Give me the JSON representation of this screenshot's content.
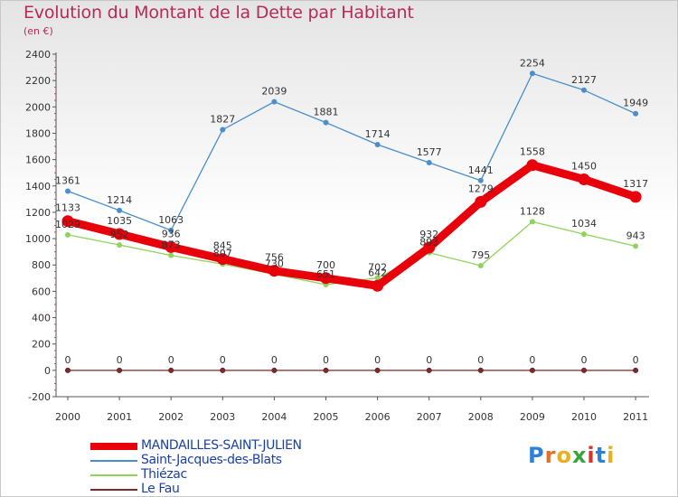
{
  "title": "Evolution du Montant de la Dette par Habitant",
  "subtitle": "(en €)",
  "logo": {
    "letters": [
      "P",
      "r",
      "o",
      "x",
      "i",
      "t",
      "i"
    ],
    "colors": [
      "#2f7fd6",
      "#e2702a",
      "#e8b020",
      "#3aa53a",
      "#d8352a",
      "#2f7fd6",
      "#e8b020"
    ]
  },
  "chart_data": {
    "type": "line",
    "title": "Evolution du Montant de la Dette par Habitant",
    "subtitle": "(en €)",
    "xlabel": "",
    "ylabel": "",
    "x": [
      "2000",
      "2001",
      "2002",
      "2003",
      "2004",
      "2005",
      "2006",
      "2007",
      "2008",
      "2009",
      "2010",
      "2011"
    ],
    "ylim": [
      -200,
      2400
    ],
    "yticks": [
      -200,
      0,
      200,
      400,
      600,
      800,
      1000,
      1200,
      1400,
      1600,
      1800,
      2000,
      2200,
      2400
    ],
    "grid": false,
    "legend": "bottom-left",
    "series": [
      {
        "name": "MANDAILLES-SAINT-JULIEN",
        "color": "#e8000b",
        "values": [
          1133,
          1035,
          936,
          845,
          756,
          700,
          642,
          932,
          1279,
          1558,
          1450,
          1317
        ],
        "labels": [
          "1133",
          "1035",
          "936",
          "845",
          "756",
          "700",
          "642",
          "932",
          "1279",
          "1558",
          "1450",
          "1317"
        ]
      },
      {
        "name": "Saint-Jacques-des-Blats",
        "color": "#4a8fcc",
        "values": [
          1361,
          1214,
          1063,
          1827,
          2039,
          1881,
          1714,
          1577,
          1441,
          2254,
          2127,
          1949
        ],
        "labels": [
          "1361",
          "1214",
          "1063",
          "1827",
          "2039",
          "1881",
          "1714",
          "1577",
          "1441",
          "2254",
          "2127",
          "1949"
        ]
      },
      {
        "name": "Thiézac",
        "color": "#8fd35a",
        "values": [
          1029,
          952,
          873,
          807,
          730,
          651,
          702,
          893,
          795,
          1128,
          1034,
          943
        ],
        "labels": [
          "1029",
          "952",
          "873",
          "807",
          "730",
          "651",
          "702",
          "893",
          "795",
          "1128",
          "1034",
          "943"
        ]
      },
      {
        "name": "Le Fau",
        "color": "#7a2a2a",
        "values": [
          0,
          0,
          0,
          0,
          0,
          0,
          0,
          0,
          0,
          0,
          0,
          0
        ],
        "labels": [
          "0",
          "0",
          "0",
          "0",
          "0",
          "0",
          "0",
          "0",
          "0",
          "0",
          "0",
          "0"
        ]
      }
    ]
  }
}
